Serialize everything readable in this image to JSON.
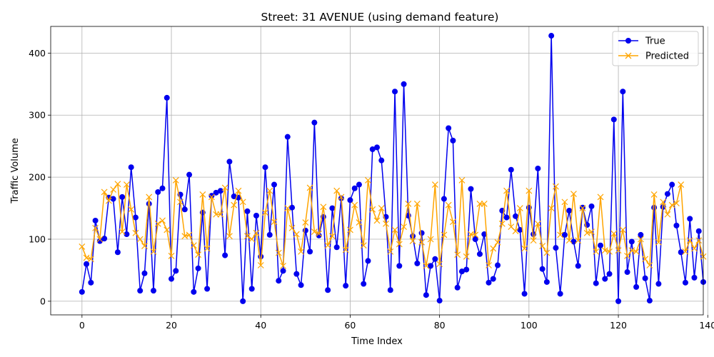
{
  "chart_data": {
    "type": "line",
    "title": "Street: 31 AVENUE (using demand feature)",
    "xlabel": "Time Index",
    "ylabel": "Traffic Volume",
    "xlim": [
      -7,
      139
    ],
    "ylim": [
      -22,
      443
    ],
    "xticks": [
      0,
      20,
      40,
      60,
      80,
      100,
      120,
      140
    ],
    "yticks": [
      0,
      100,
      200,
      300,
      400
    ],
    "grid": true,
    "legend_position": "top-right",
    "series": [
      {
        "name": "True",
        "color": "#0000ee",
        "marker": "circle",
        "values": [
          15,
          60,
          30,
          130,
          97,
          101,
          167,
          165,
          79,
          168,
          108,
          216,
          135,
          17,
          45,
          157,
          17,
          176,
          182,
          328,
          36,
          49,
          172,
          148,
          204,
          15,
          53,
          143,
          20,
          170,
          175,
          178,
          74,
          225,
          169,
          167,
          0,
          145,
          20,
          138,
          72,
          216,
          107,
          188,
          33,
          49,
          265,
          151,
          44,
          26,
          114,
          80,
          288,
          106,
          136,
          18,
          150,
          87,
          166,
          25,
          163,
          182,
          188,
          28,
          65,
          245,
          248,
          227,
          136,
          18,
          338,
          57,
          350,
          138,
          105,
          61,
          110,
          10,
          57,
          68,
          1,
          165,
          279,
          259,
          22,
          48,
          51,
          181,
          100,
          76,
          108,
          30,
          36,
          58,
          146,
          135,
          212,
          137,
          115,
          12,
          151,
          108,
          214,
          52,
          31,
          428,
          86,
          12,
          107,
          146,
          96,
          57,
          151,
          123,
          153,
          29,
          90,
          36,
          44,
          293,
          0,
          338,
          47,
          96,
          23,
          107,
          37,
          1,
          151,
          28,
          152,
          173,
          188,
          122,
          79,
          30,
          133,
          38,
          113,
          31
        ]
      },
      {
        "name": "Predicted",
        "color": "#ffa500",
        "marker": "x",
        "values": [
          88,
          70,
          68,
          118,
          100,
          176,
          162,
          180,
          189,
          112,
          188,
          148,
          110,
          100,
          89,
          168,
          80,
          125,
          130,
          115,
          73,
          195,
          160,
          105,
          107,
          90,
          75,
          172,
          85,
          168,
          140,
          140,
          183,
          105,
          155,
          178,
          160,
          105,
          100,
          110,
          58,
          143,
          178,
          128,
          78,
          57,
          150,
          118,
          108,
          80,
          127,
          183,
          112,
          109,
          152,
          90,
          105,
          178,
          168,
          83,
          115,
          155,
          127,
          90,
          195,
          148,
          130,
          150,
          125,
          80,
          115,
          92,
          120,
          157,
          97,
          157,
          95,
          57,
          100,
          188,
          60,
          107,
          155,
          128,
          75,
          195,
          72,
          108,
          107,
          157,
          157,
          58,
          85,
          95,
          125,
          178,
          120,
          113,
          150,
          85,
          178,
          98,
          125,
          89,
          78,
          150,
          185,
          107,
          160,
          98,
          173,
          98,
          150,
          110,
          112,
          80,
          168,
          82,
          80,
          109,
          82,
          115,
          73,
          82,
          80,
          100,
          68,
          58,
          172,
          95,
          160,
          140,
          155,
          158,
          188,
          80,
          98,
          85,
          98,
          72
        ]
      }
    ]
  }
}
